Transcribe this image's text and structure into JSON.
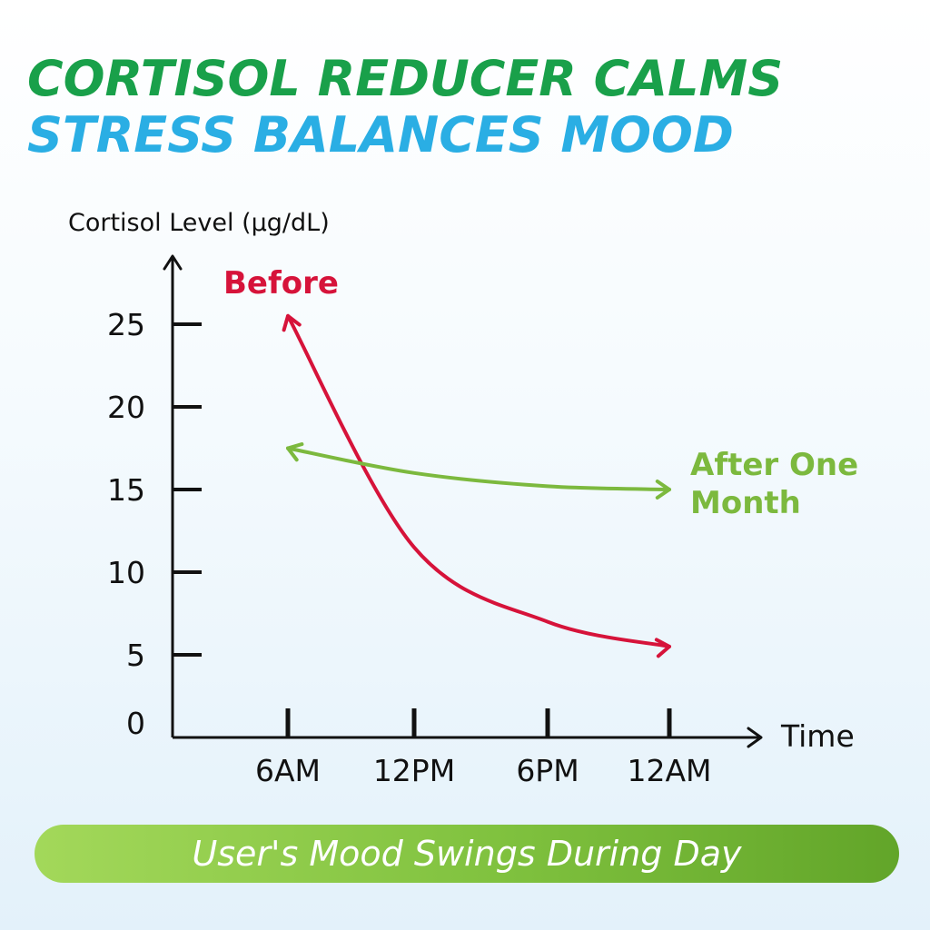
{
  "headline": {
    "line1": "CORTISOL REDUCER CALMS",
    "line2": "STRESS BALANCES MOOD"
  },
  "colors": {
    "headline_line1": "#19a04a",
    "headline_line2": "#2aaee4",
    "before_series": "#d6133a",
    "after_series": "#7cb93e",
    "axis": "#111111",
    "banner_start": "#a3d85a",
    "banner_end": "#62a529"
  },
  "chart_data": {
    "type": "line",
    "title": "",
    "ylabel": "Cortisol Level (µg/dL)",
    "xlabel": "Time",
    "ylim": [
      0,
      27
    ],
    "yticks": [
      {
        "value": 25,
        "label": "25"
      },
      {
        "value": 20,
        "label": "20"
      },
      {
        "value": 15,
        "label": "15"
      },
      {
        "value": 10,
        "label": "10"
      },
      {
        "value": 5,
        "label": "5"
      },
      {
        "value": 0,
        "label": "0"
      }
    ],
    "categories": [
      "6AM",
      "12PM",
      "6PM",
      "12AM"
    ],
    "grid": false,
    "legend": "inline labels at curve ends",
    "series": [
      {
        "name": "Before",
        "color": "#d6133a",
        "x": [
          "6AM",
          "12PM",
          "6PM",
          "12AM"
        ],
        "values": [
          25.5,
          11.5,
          7,
          5.5
        ]
      },
      {
        "name": "After One Month",
        "color": "#7cb93e",
        "x": [
          "6AM",
          "12PM",
          "6PM",
          "12AM"
        ],
        "values": [
          17.5,
          16,
          15.2,
          15
        ]
      }
    ]
  },
  "banner": {
    "text": "User's Mood Swings During Day"
  }
}
